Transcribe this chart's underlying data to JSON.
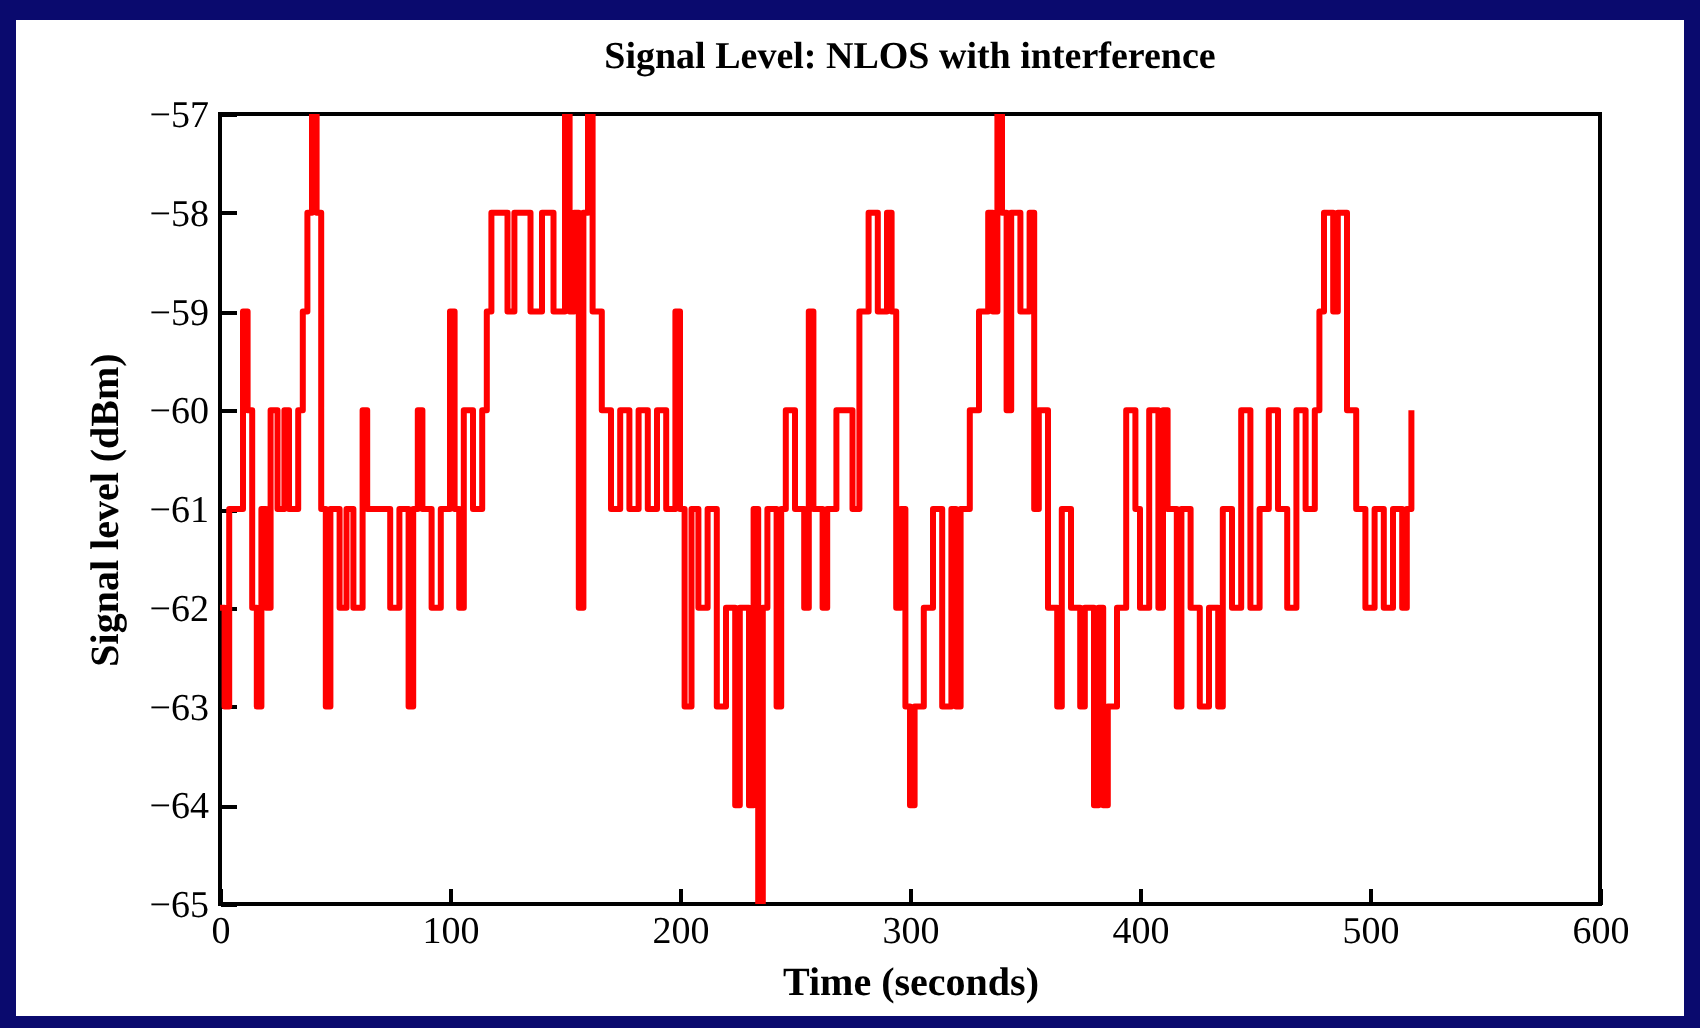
{
  "chart_data": {
    "type": "step",
    "title": "Signal Level: NLOS with interference",
    "xlabel": "Time (seconds)",
    "ylabel": "Signal level (dBm)",
    "xlim": [
      0,
      600
    ],
    "xticks": [
      0,
      100,
      200,
      300,
      400,
      500,
      600
    ],
    "ylim": [
      -65,
      -57
    ],
    "yticks": [
      -65,
      -64,
      -63,
      -62,
      -61,
      -60,
      -59,
      -58,
      -57
    ],
    "grid": false,
    "line_style": "solid",
    "marker": "none",
    "x": [
      0,
      2,
      4,
      8,
      10,
      12,
      14,
      16,
      18,
      20,
      22,
      25,
      28,
      30,
      34,
      36,
      38,
      40,
      42,
      44,
      46,
      48,
      52,
      55,
      58,
      62,
      64,
      70,
      74,
      78,
      82,
      84,
      86,
      88,
      92,
      96,
      100,
      102,
      104,
      106,
      110,
      114,
      116,
      118,
      125,
      128,
      135,
      140,
      145,
      150,
      152,
      154,
      156,
      158,
      160,
      162,
      166,
      170,
      174,
      178,
      182,
      186,
      190,
      194,
      198,
      200,
      202,
      205,
      208,
      212,
      216,
      220,
      224,
      226,
      230,
      232,
      234,
      236,
      238,
      242,
      244,
      246,
      250,
      254,
      256,
      258,
      262,
      264,
      268,
      272,
      275,
      278,
      282,
      286,
      290,
      292,
      294,
      296,
      298,
      300,
      302,
      306,
      310,
      314,
      318,
      320,
      322,
      326,
      330,
      334,
      336,
      338,
      340,
      342,
      344,
      348,
      352,
      354,
      356,
      360,
      364,
      366,
      370,
      374,
      376,
      380,
      382,
      384,
      386,
      390,
      394,
      398,
      400,
      404,
      408,
      410,
      412,
      416,
      418,
      422,
      426,
      430,
      434,
      436,
      440,
      444,
      448,
      452,
      456,
      460,
      464,
      468,
      472,
      476,
      478,
      480,
      484,
      486,
      490,
      494,
      498,
      502,
      506,
      510,
      514,
      516,
      518
    ],
    "series": [
      {
        "color": "#ff0000",
        "values": [
          -62,
          -63,
          -61,
          -61,
          -59,
          -60,
          -62,
          -63,
          -61,
          -62,
          -60,
          -61,
          -60,
          -61,
          -60,
          -59,
          -58,
          -57,
          -58,
          -61,
          -63,
          -61,
          -62,
          -61,
          -62,
          -60,
          -61,
          -61,
          -62,
          -61,
          -63,
          -61,
          -60,
          -61,
          -62,
          -61,
          -59,
          -61,
          -62,
          -60,
          -61,
          -60,
          -59,
          -58,
          -59,
          -58,
          -59,
          -58,
          -59,
          -57,
          -59,
          -58,
          -62,
          -58,
          -57,
          -59,
          -60,
          -61,
          -60,
          -61,
          -60,
          -61,
          -60,
          -61,
          -59,
          -61,
          -63,
          -61,
          -62,
          -61,
          -63,
          -62,
          -64,
          -62,
          -64,
          -61,
          -65,
          -62,
          -61,
          -63,
          -61,
          -60,
          -61,
          -62,
          -59,
          -61,
          -62,
          -61,
          -60,
          -60,
          -61,
          -59,
          -58,
          -59,
          -58,
          -59,
          -62,
          -61,
          -63,
          -64,
          -63,
          -62,
          -61,
          -63,
          -61,
          -63,
          -61,
          -60,
          -59,
          -58,
          -59,
          -57,
          -58,
          -60,
          -58,
          -59,
          -58,
          -61,
          -60,
          -62,
          -63,
          -61,
          -62,
          -63,
          -62,
          -64,
          -62,
          -64,
          -63,
          -62,
          -60,
          -61,
          -62,
          -60,
          -62,
          -60,
          -61,
          -63,
          -61,
          -62,
          -63,
          -62,
          -63,
          -61,
          -62,
          -60,
          -62,
          -61,
          -60,
          -61,
          -62,
          -60,
          -61,
          -60,
          -59,
          -58,
          -59,
          -58,
          -60,
          -61,
          -62,
          -61,
          -62,
          -61,
          -62,
          -61,
          -60
        ]
      }
    ]
  }
}
